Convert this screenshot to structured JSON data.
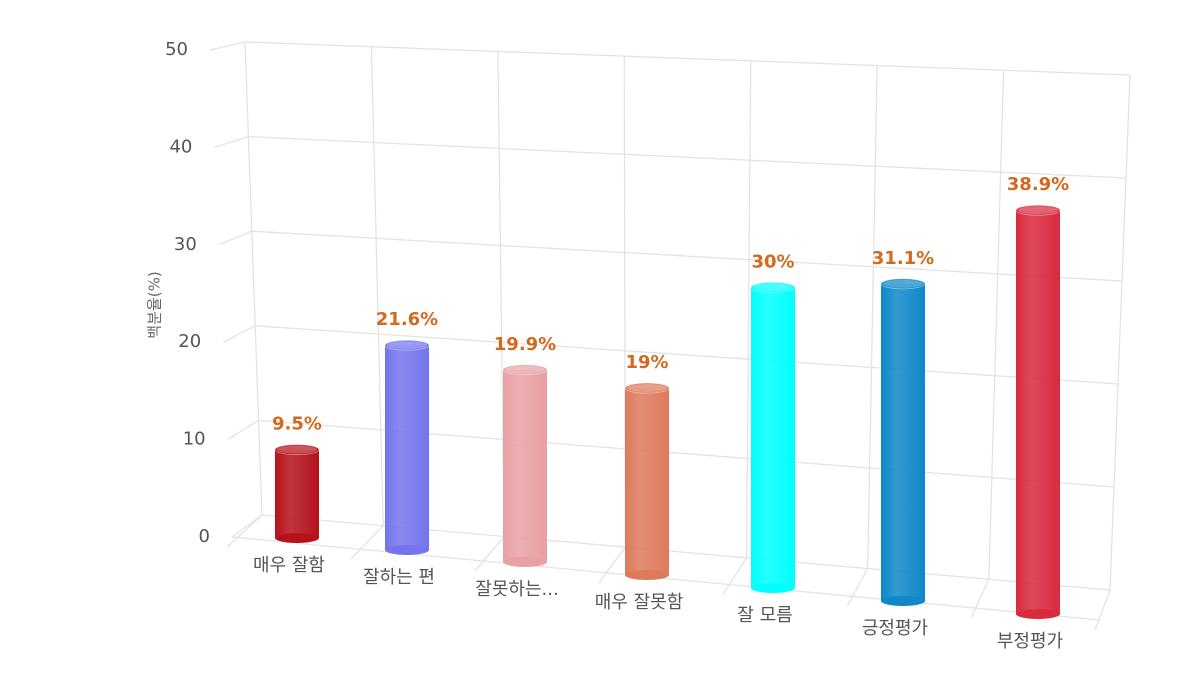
{
  "chart_data": {
    "type": "bar",
    "y_label": "백분율(%)",
    "categories": [
      "매우 잘함",
      "잘하는 편",
      "잘못하는...",
      "매우 잘못함",
      "잘 모름",
      "긍정평가",
      "부정평가"
    ],
    "values": [
      9.5,
      21.6,
      19.9,
      19,
      30,
      31.1,
      38.9
    ],
    "value_labels": [
      "9.5%",
      "21.6%",
      "19.9%",
      "19%",
      "30%",
      "31.1%",
      "38.9%"
    ],
    "colors": [
      "#b5121b",
      "#7474ee",
      "#e8a0a4",
      "#dd7a5c",
      "#00ffff",
      "#0e88c8",
      "#d92a3e"
    ],
    "ylim": [
      0,
      50
    ],
    "yticks": [
      0,
      10,
      20,
      30,
      40,
      50
    ],
    "grid": true
  }
}
